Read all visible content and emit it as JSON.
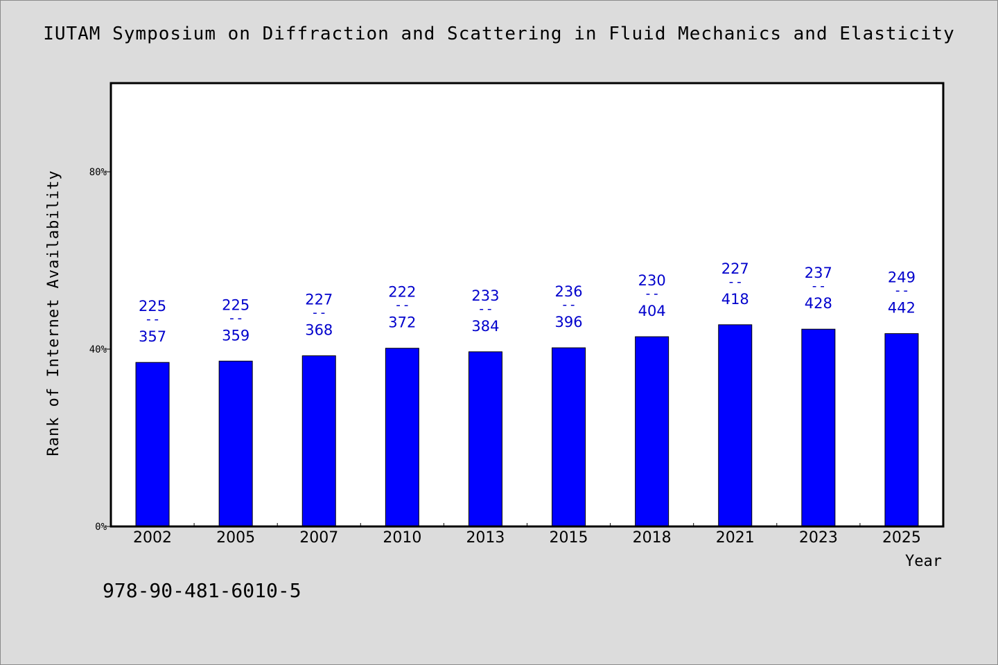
{
  "chart_data": {
    "type": "bar",
    "title": "IUTAM Symposium on Diffraction and Scattering in Fluid Mechanics and Elasticity",
    "xlabel": "Year",
    "ylabel": "Rank of Internet Availability",
    "categories": [
      "2002",
      "2005",
      "2007",
      "2010",
      "2013",
      "2015",
      "2018",
      "2021",
      "2023",
      "2025"
    ],
    "values": [
      37,
      37.3,
      38.5,
      40.2,
      39.4,
      40.3,
      42.8,
      45.5,
      44.5,
      43.5
    ],
    "annotations": [
      {
        "top": "225",
        "sep": "--",
        "bottom": "357"
      },
      {
        "top": "225",
        "sep": "--",
        "bottom": "359"
      },
      {
        "top": "227",
        "sep": "--",
        "bottom": "368"
      },
      {
        "top": "222",
        "sep": "--",
        "bottom": "372"
      },
      {
        "top": "233",
        "sep": "--",
        "bottom": "384"
      },
      {
        "top": "236",
        "sep": "--",
        "bottom": "396"
      },
      {
        "top": "230",
        "sep": "--",
        "bottom": "404"
      },
      {
        "top": "227",
        "sep": "--",
        "bottom": "418"
      },
      {
        "top": "237",
        "sep": "--",
        "bottom": "428"
      },
      {
        "top": "249",
        "sep": "--",
        "bottom": "442"
      }
    ],
    "yticks": [
      {
        "value": 0,
        "label": "0%"
      },
      {
        "value": 40,
        "label": "40%"
      },
      {
        "value": 80,
        "label": "80%"
      }
    ],
    "ylim": [
      0,
      100
    ],
    "grid": false,
    "colors": {
      "bar": "#0000ff",
      "label": "#0000cc",
      "background": "#dcdcdc",
      "plot": "#ffffff"
    }
  },
  "footer": {
    "isbn": "978-90-481-6010-5"
  }
}
